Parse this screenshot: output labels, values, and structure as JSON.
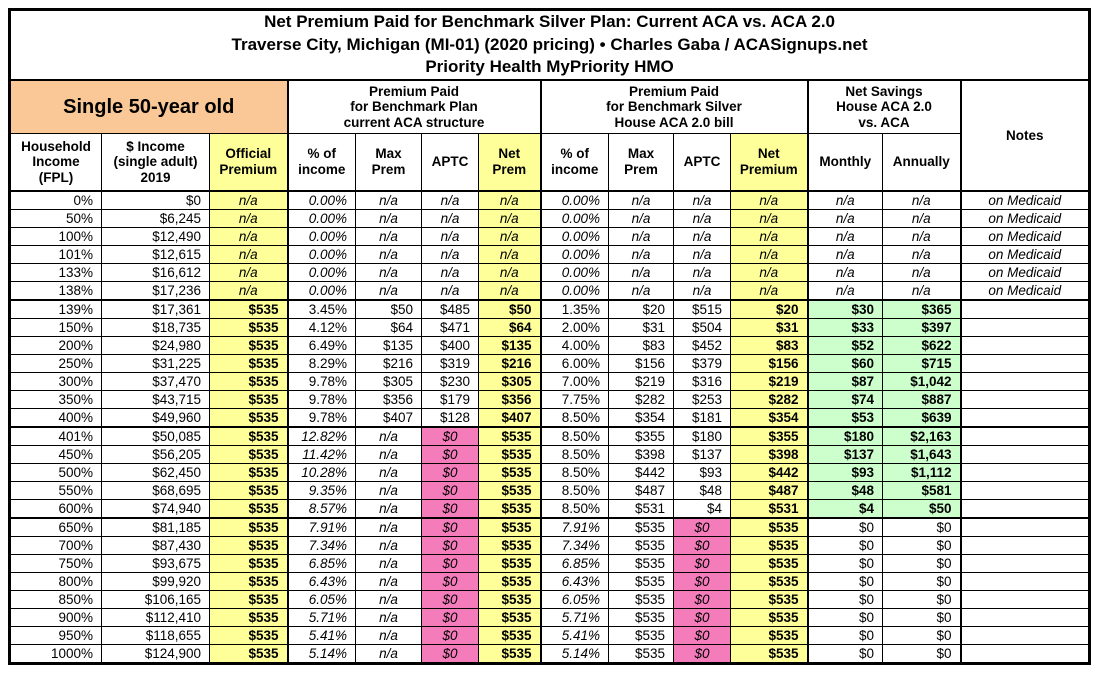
{
  "title": {
    "line1": "Net Premium Paid for Benchmark Silver Plan: Current ACA vs. ACA 2.0",
    "line2": "Traverse City, Michigan (MI-01) (2020 pricing) • Charles Gaba / ACASignups.net",
    "line3": "Priority Health MyPriority HMO"
  },
  "header": {
    "subject": "Single 50-year old",
    "group_current_aca": "Premium Paid\nfor Benchmark Plan\ncurrent ACA structure",
    "group_aca2": "Premium Paid\nfor Benchmark Silver\nHouse ACA 2.0 bill",
    "group_savings": "Net Savings\nHouse ACA 2.0\nvs. ACA",
    "notes": "Notes",
    "col_fpl": "Household\nIncome\n(FPL)",
    "col_income": "$ Income\n(single adult)\n2019",
    "col_official": "Official\nPremium",
    "col_pct1": "% of\nincome",
    "col_max1": "Max\nPrem",
    "col_aptc1": "APTC",
    "col_net1": "Net\nPrem",
    "col_pct2": "% of\nincome",
    "col_max2": "Max\nPrem",
    "col_aptc2": "APTC",
    "col_net2": "Net\nPremium",
    "col_monthly": "Monthly",
    "col_annually": "Annually"
  },
  "colors": {
    "highlight_yellow": "#FFFF99",
    "savings_green": "#CCFFCC",
    "no_subsidy_pink": "#F47CBB",
    "subject_peach": "#FAC896",
    "border": "#000000"
  },
  "chart_data": {
    "type": "table",
    "title": "Net Premium Paid for Benchmark Silver Plan: Current ACA vs. ACA 2.0",
    "subtitle": "Traverse City, Michigan (MI-01) (2020 pricing) • Charles Gaba / ACASignups.net",
    "plan": "Priority Health MyPriority HMO",
    "subject": "Single 50-year old",
    "column_groups": [
      "Premium Paid for Benchmark Plan current ACA structure",
      "Premium Paid for Benchmark Silver House ACA 2.0 bill",
      "Net Savings House ACA 2.0 vs. ACA"
    ],
    "columns": [
      "Household Income (FPL)",
      "$ Income (single adult) 2019",
      "Official Premium",
      "ACA % of income",
      "ACA Max Prem",
      "ACA APTC",
      "ACA Net Prem",
      "ACA 2.0 % of income",
      "ACA 2.0 Max Prem",
      "ACA 2.0 APTC",
      "ACA 2.0 Net Premium",
      "Savings Monthly",
      "Savings Annually",
      "Notes"
    ],
    "rows": [
      {
        "band": "medicaid",
        "cells": [
          "0%",
          "$0",
          "n/a",
          "0.00%",
          "n/a",
          "n/a",
          "n/a",
          "0.00%",
          "n/a",
          "n/a",
          "n/a",
          "n/a",
          "n/a",
          "on Medicaid"
        ]
      },
      {
        "band": "medicaid",
        "cells": [
          "50%",
          "$6,245",
          "n/a",
          "0.00%",
          "n/a",
          "n/a",
          "n/a",
          "0.00%",
          "n/a",
          "n/a",
          "n/a",
          "n/a",
          "n/a",
          "on Medicaid"
        ]
      },
      {
        "band": "medicaid",
        "cells": [
          "100%",
          "$12,490",
          "n/a",
          "0.00%",
          "n/a",
          "n/a",
          "n/a",
          "0.00%",
          "n/a",
          "n/a",
          "n/a",
          "n/a",
          "n/a",
          "on Medicaid"
        ]
      },
      {
        "band": "medicaid",
        "cells": [
          "101%",
          "$12,615",
          "n/a",
          "0.00%",
          "n/a",
          "n/a",
          "n/a",
          "0.00%",
          "n/a",
          "n/a",
          "n/a",
          "n/a",
          "n/a",
          "on Medicaid"
        ]
      },
      {
        "band": "medicaid",
        "cells": [
          "133%",
          "$16,612",
          "n/a",
          "0.00%",
          "n/a",
          "n/a",
          "n/a",
          "0.00%",
          "n/a",
          "n/a",
          "n/a",
          "n/a",
          "n/a",
          "on Medicaid"
        ]
      },
      {
        "band": "medicaid",
        "cells": [
          "138%",
          "$17,236",
          "n/a",
          "0.00%",
          "n/a",
          "n/a",
          "n/a",
          "0.00%",
          "n/a",
          "n/a",
          "n/a",
          "n/a",
          "n/a",
          "on Medicaid"
        ]
      },
      {
        "band": "subsidized",
        "cells": [
          "139%",
          "$17,361",
          "$535",
          "3.45%",
          "$50",
          "$485",
          "$50",
          "1.35%",
          "$20",
          "$515",
          "$20",
          "$30",
          "$365",
          ""
        ]
      },
      {
        "band": "subsidized",
        "cells": [
          "150%",
          "$18,735",
          "$535",
          "4.12%",
          "$64",
          "$471",
          "$64",
          "2.00%",
          "$31",
          "$504",
          "$31",
          "$33",
          "$397",
          ""
        ]
      },
      {
        "band": "subsidized",
        "cells": [
          "200%",
          "$24,980",
          "$535",
          "6.49%",
          "$135",
          "$400",
          "$135",
          "4.00%",
          "$83",
          "$452",
          "$83",
          "$52",
          "$622",
          ""
        ]
      },
      {
        "band": "subsidized",
        "cells": [
          "250%",
          "$31,225",
          "$535",
          "8.29%",
          "$216",
          "$319",
          "$216",
          "6.00%",
          "$156",
          "$379",
          "$156",
          "$60",
          "$715",
          ""
        ]
      },
      {
        "band": "subsidized",
        "cells": [
          "300%",
          "$37,470",
          "$535",
          "9.78%",
          "$305",
          "$230",
          "$305",
          "7.00%",
          "$219",
          "$316",
          "$219",
          "$87",
          "$1,042",
          ""
        ]
      },
      {
        "band": "subsidized",
        "cells": [
          "350%",
          "$43,715",
          "$535",
          "9.78%",
          "$356",
          "$179",
          "$356",
          "7.75%",
          "$282",
          "$253",
          "$282",
          "$74",
          "$887",
          ""
        ]
      },
      {
        "band": "subsidized",
        "cells": [
          "400%",
          "$49,960",
          "$535",
          "9.78%",
          "$407",
          "$128",
          "$407",
          "8.50%",
          "$354",
          "$181",
          "$354",
          "$53",
          "$639",
          ""
        ]
      },
      {
        "band": "cliff",
        "cells": [
          "401%",
          "$50,085",
          "$535",
          "12.82%",
          "n/a",
          "$0",
          "$535",
          "8.50%",
          "$355",
          "$180",
          "$355",
          "$180",
          "$2,163",
          ""
        ]
      },
      {
        "band": "cliff",
        "cells": [
          "450%",
          "$56,205",
          "$535",
          "11.42%",
          "n/a",
          "$0",
          "$535",
          "8.50%",
          "$398",
          "$137",
          "$398",
          "$137",
          "$1,643",
          ""
        ]
      },
      {
        "band": "cliff",
        "cells": [
          "500%",
          "$62,450",
          "$535",
          "10.28%",
          "n/a",
          "$0",
          "$535",
          "8.50%",
          "$442",
          "$93",
          "$442",
          "$93",
          "$1,112",
          ""
        ]
      },
      {
        "band": "cliff",
        "cells": [
          "550%",
          "$68,695",
          "$535",
          "9.35%",
          "n/a",
          "$0",
          "$535",
          "8.50%",
          "$487",
          "$48",
          "$487",
          "$48",
          "$581",
          ""
        ]
      },
      {
        "band": "cliff",
        "cells": [
          "600%",
          "$74,940",
          "$535",
          "8.57%",
          "n/a",
          "$0",
          "$535",
          "8.50%",
          "$531",
          "$4",
          "$531",
          "$4",
          "$50",
          ""
        ]
      },
      {
        "band": "nosub",
        "cells": [
          "650%",
          "$81,185",
          "$535",
          "7.91%",
          "n/a",
          "$0",
          "$535",
          "7.91%",
          "$535",
          "$0",
          "$535",
          "$0",
          "$0",
          ""
        ]
      },
      {
        "band": "nosub",
        "cells": [
          "700%",
          "$87,430",
          "$535",
          "7.34%",
          "n/a",
          "$0",
          "$535",
          "7.34%",
          "$535",
          "$0",
          "$535",
          "$0",
          "$0",
          ""
        ]
      },
      {
        "band": "nosub",
        "cells": [
          "750%",
          "$93,675",
          "$535",
          "6.85%",
          "n/a",
          "$0",
          "$535",
          "6.85%",
          "$535",
          "$0",
          "$535",
          "$0",
          "$0",
          ""
        ]
      },
      {
        "band": "nosub",
        "cells": [
          "800%",
          "$99,920",
          "$535",
          "6.43%",
          "n/a",
          "$0",
          "$535",
          "6.43%",
          "$535",
          "$0",
          "$535",
          "$0",
          "$0",
          ""
        ]
      },
      {
        "band": "nosub",
        "cells": [
          "850%",
          "$106,165",
          "$535",
          "6.05%",
          "n/a",
          "$0",
          "$535",
          "6.05%",
          "$535",
          "$0",
          "$535",
          "$0",
          "$0",
          ""
        ]
      },
      {
        "band": "nosub",
        "cells": [
          "900%",
          "$112,410",
          "$535",
          "5.71%",
          "n/a",
          "$0",
          "$535",
          "5.71%",
          "$535",
          "$0",
          "$535",
          "$0",
          "$0",
          ""
        ]
      },
      {
        "band": "nosub",
        "cells": [
          "950%",
          "$118,655",
          "$535",
          "5.41%",
          "n/a",
          "$0",
          "$535",
          "5.41%",
          "$535",
          "$0",
          "$535",
          "$0",
          "$0",
          ""
        ]
      },
      {
        "band": "nosub",
        "cells": [
          "1000%",
          "$124,900",
          "$535",
          "5.14%",
          "n/a",
          "$0",
          "$535",
          "5.14%",
          "$535",
          "$0",
          "$535",
          "$0",
          "$0",
          ""
        ]
      }
    ]
  }
}
